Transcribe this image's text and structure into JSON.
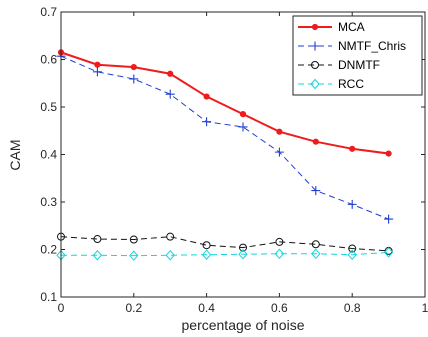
{
  "chart_data": {
    "type": "line",
    "title": "",
    "xlabel": "percentage of noise",
    "ylabel": "CAM",
    "xlim": [
      0,
      1
    ],
    "ylim": [
      0.1,
      0.7
    ],
    "xticks": [
      0,
      0.2,
      0.4,
      0.6,
      0.8,
      1
    ],
    "xtick_labels": [
      "0",
      "0.2",
      "0.4",
      "0.6",
      "0.8",
      "1"
    ],
    "yticks": [
      0.1,
      0.2,
      0.3,
      0.4,
      0.5,
      0.6,
      0.7
    ],
    "ytick_labels": [
      "0.1",
      "0.2",
      "0.3",
      "0.4",
      "0.5",
      "0.6",
      "0.7"
    ],
    "grid": false,
    "legend_position": "top-right",
    "x": [
      0,
      0.1,
      0.2,
      0.3,
      0.4,
      0.5,
      0.6,
      0.7,
      0.8,
      0.9
    ],
    "series": [
      {
        "name": "MCA",
        "color": "#ee1c1c",
        "line_style": "solid",
        "marker": "filled-circle",
        "values": [
          0.615,
          0.589,
          0.584,
          0.57,
          0.522,
          0.485,
          0.448,
          0.427,
          0.412,
          0.402
        ]
      },
      {
        "name": "NMTF_Chris",
        "color": "#1f3fd1",
        "line_style": "dashed",
        "marker": "plus",
        "values": [
          0.607,
          0.574,
          0.559,
          0.527,
          0.469,
          0.458,
          0.405,
          0.324,
          0.295,
          0.264
        ]
      },
      {
        "name": "DNMTF",
        "color": "#111111",
        "line_style": "dashed",
        "marker": "open-circle",
        "values": [
          0.227,
          0.222,
          0.221,
          0.227,
          0.209,
          0.204,
          0.216,
          0.211,
          0.202,
          0.197
        ]
      },
      {
        "name": "RCC",
        "color": "#17d4dc",
        "line_style": "dashed",
        "marker": "diamond",
        "values": [
          0.188,
          0.188,
          0.187,
          0.188,
          0.189,
          0.19,
          0.191,
          0.191,
          0.189,
          0.194
        ]
      }
    ]
  }
}
